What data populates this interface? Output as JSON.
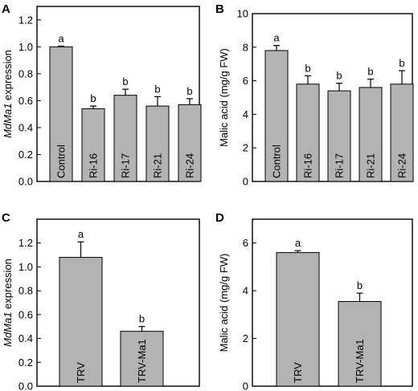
{
  "chart_data": [
    {
      "panel": "A",
      "type": "bar",
      "ylabel_italic": "MdMa1",
      "ylabel_rest": " expression",
      "categories": [
        "Control",
        "Ri-16",
        "Ri-17",
        "Ri-21",
        "Ri-24"
      ],
      "values": [
        1.0,
        0.54,
        0.64,
        0.56,
        0.57
      ],
      "errors": [
        0.005,
        0.02,
        0.045,
        0.07,
        0.045
      ],
      "letters": [
        "a",
        "b",
        "b",
        "b",
        "b"
      ],
      "ylim": [
        0,
        1.3
      ],
      "yticks": [
        0,
        0.2,
        0.4,
        0.6,
        0.8,
        1.0,
        1.2
      ],
      "ytick_labels": [
        "0.0",
        "0.2",
        "0.4",
        "0.6",
        "0.8",
        "1.0",
        "1.2"
      ]
    },
    {
      "panel": "B",
      "type": "bar",
      "ylabel": "Malic acid (mg/g FW)",
      "categories": [
        "Control",
        "Ri-16",
        "Ri-17",
        "Ri-21",
        "Ri-24"
      ],
      "values": [
        7.8,
        5.8,
        5.4,
        5.6,
        5.8
      ],
      "errors": [
        0.3,
        0.5,
        0.45,
        0.5,
        0.8
      ],
      "letters": [
        "a",
        "b",
        "b",
        "b",
        "b"
      ],
      "ylim": [
        0,
        10
      ],
      "yticks": [
        0,
        2,
        4,
        6,
        8,
        10
      ],
      "ytick_labels": [
        "0",
        "2",
        "4",
        "6",
        "8",
        "10"
      ]
    },
    {
      "panel": "C",
      "type": "bar",
      "ylabel_italic": "MdMa1",
      "ylabel_rest": " expression",
      "categories": [
        "TRV",
        "TRV-Ma1"
      ],
      "values": [
        1.08,
        0.46
      ],
      "errors": [
        0.13,
        0.04
      ],
      "letters": [
        "a",
        "b"
      ],
      "ylim": [
        0,
        1.4
      ],
      "yticks": [
        0,
        0.2,
        0.4,
        0.6,
        0.8,
        1.0,
        1.2
      ],
      "ytick_labels": [
        "0.0",
        "0.2",
        "0.4",
        "0.6",
        "0.8",
        "1.0",
        "1.2"
      ]
    },
    {
      "panel": "D",
      "type": "bar",
      "ylabel": "Malic acid (mg/g FW)",
      "categories": [
        "TRV",
        "TRV-Ma1"
      ],
      "values": [
        5.6,
        3.55
      ],
      "errors": [
        0.08,
        0.35
      ],
      "letters": [
        "a",
        "b"
      ],
      "ylim": [
        0,
        7
      ],
      "yticks": [
        0,
        2,
        4,
        6
      ],
      "ytick_labels": [
        "0",
        "2",
        "4",
        "6"
      ]
    }
  ],
  "colors": {
    "bar": "#b3b3b3",
    "axis": "#000000"
  }
}
